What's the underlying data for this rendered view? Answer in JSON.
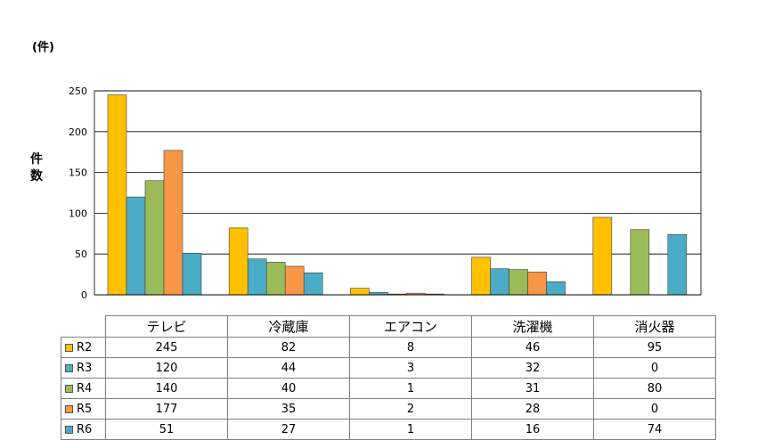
{
  "chart_data": {
    "type": "bar",
    "unit_label": "(件)",
    "ylabel": "件数",
    "ylim": [
      0,
      250
    ],
    "yticks": [
      0,
      50,
      100,
      150,
      200,
      250
    ],
    "grid": true,
    "categories": [
      "テレビ",
      "冷蔵庫",
      "エアコン",
      "洗濯機",
      "消火器"
    ],
    "series": [
      {
        "name": "R2",
        "color": "#FFC000",
        "values": [
          245,
          82,
          8,
          46,
          95
        ]
      },
      {
        "name": "R3",
        "color": "#4BACC6",
        "values": [
          120,
          44,
          3,
          32,
          0
        ]
      },
      {
        "name": "R4",
        "color": "#9BBB59",
        "values": [
          140,
          40,
          1,
          31,
          80
        ]
      },
      {
        "name": "R5",
        "color": "#F79646",
        "values": [
          177,
          35,
          2,
          28,
          0
        ]
      },
      {
        "name": "R6",
        "color": "#4BACC6",
        "values": [
          51,
          27,
          1,
          16,
          74
        ]
      }
    ],
    "legend": "data-table"
  }
}
